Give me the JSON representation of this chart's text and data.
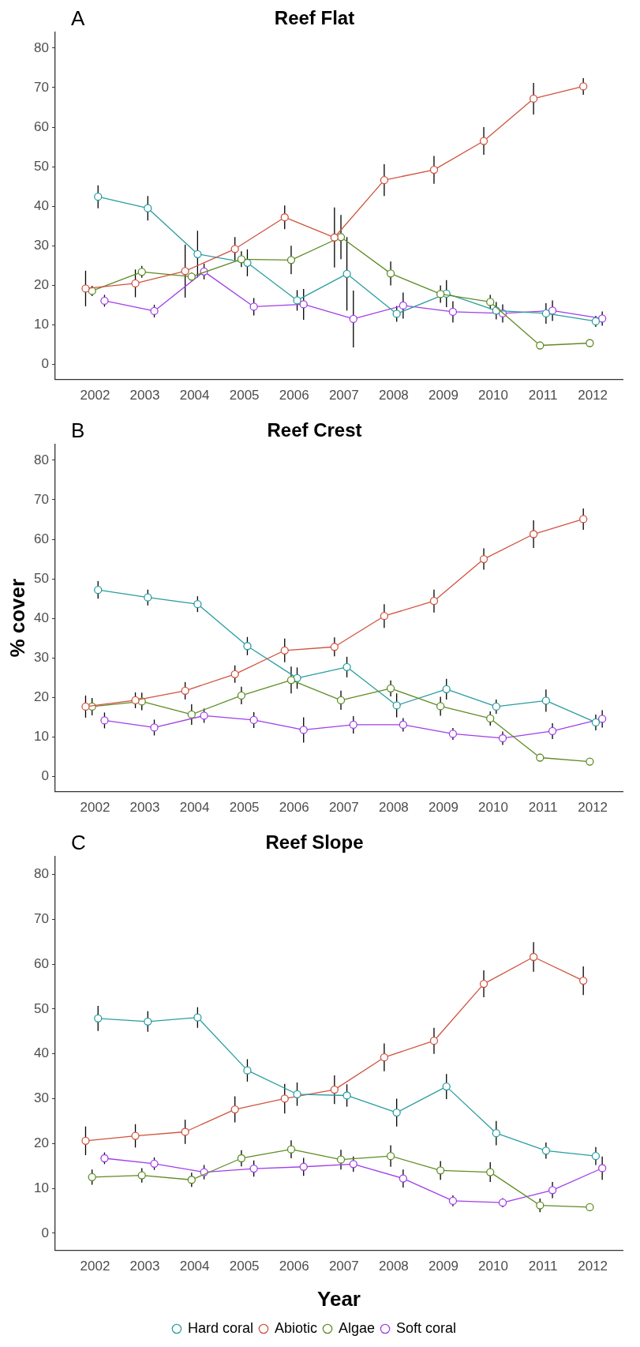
{
  "chart_data": [
    {
      "type": "line",
      "title": "Reef Flat",
      "annotations": [
        "A"
      ],
      "xlim": [
        2001.2,
        2012.6
      ],
      "xticks": [
        2002,
        2003,
        2004,
        2005,
        2006,
        2007,
        2008,
        2009,
        2010,
        2011,
        2012
      ],
      "ylim": [
        -3.8,
        84
      ],
      "yticks": [
        0,
        10,
        20,
        30,
        40,
        50,
        60,
        70,
        80
      ],
      "grid": false,
      "legend": false,
      "marker": "circle",
      "line_style": "solid",
      "series": [
        {
          "color": "#d0533f",
          "x": [
            2001.81,
            2002.81,
            2003.81,
            2004.81,
            2005.81,
            2006.81,
            2007.81,
            2008.81,
            2009.81,
            2010.81,
            2011.81
          ],
          "values": [
            19.2,
            20.5,
            23.6,
            29.2,
            37.2,
            32.1,
            46.6,
            49.2,
            56.5,
            67.2,
            70.3
          ],
          "errors": [
            4.5,
            3.5,
            6.7,
            3,
            3,
            7.6,
            4,
            3.5,
            3.5,
            4,
            2.1
          ]
        },
        {
          "color": "#5f8c24",
          "x": [
            2001.94,
            2002.94,
            2003.94,
            2004.94,
            2005.94,
            2006.94,
            2007.94,
            2008.94,
            2009.94,
            2010.94,
            2011.94
          ],
          "values": [
            18.6,
            23.4,
            22.2,
            26.6,
            26.4,
            32.2,
            23,
            17.8,
            15.8,
            4.8,
            5.4
          ],
          "errors": [
            1.3,
            1.5,
            1,
            2,
            3.6,
            5.6,
            3,
            2.2,
            1.8,
            null,
            null
          ]
        },
        {
          "color": "#2a9d9f",
          "x": [
            2002.06,
            2003.06,
            2004.06,
            2005.06,
            2006.06,
            2007.06,
            2008.06,
            2009.06,
            2010.06,
            2011.06,
            2012.06
          ],
          "values": [
            42.4,
            39.5,
            27.9,
            25.7,
            16.2,
            22.9,
            12.8,
            17.9,
            13.6,
            12.9,
            10.9
          ],
          "errors": [
            2.9,
            3.1,
            5.9,
            3.4,
            2.6,
            9.3,
            2,
            3.4,
            2.2,
            2.6,
            1.4
          ]
        },
        {
          "color": "#a13ee8",
          "x": [
            2002.19,
            2003.19,
            2004.19,
            2005.19,
            2006.19,
            2007.19,
            2008.19,
            2009.19,
            2010.19,
            2011.19,
            2012.19
          ],
          "values": [
            16.1,
            13.5,
            23.5,
            14.6,
            15.2,
            11.5,
            14.9,
            13.3,
            12.9,
            13.6,
            11.6
          ],
          "errors": [
            1.5,
            1.6,
            2,
            2.2,
            3.9,
            7.2,
            3.3,
            2.7,
            2.3,
            2.6,
            1.8
          ]
        }
      ]
    },
    {
      "type": "line",
      "title": "Reef Crest",
      "ylabel": "% cover",
      "annotations": [
        "B"
      ],
      "xlim": [
        2001.2,
        2012.6
      ],
      "xticks": [
        2002,
        2003,
        2004,
        2005,
        2006,
        2007,
        2008,
        2009,
        2010,
        2011,
        2012
      ],
      "ylim": [
        -3.8,
        84
      ],
      "yticks": [
        0,
        10,
        20,
        30,
        40,
        50,
        60,
        70,
        80
      ],
      "grid": false,
      "legend": false,
      "marker": "circle",
      "line_style": "solid",
      "series": [
        {
          "color": "#d0533f",
          "x": [
            2001.81,
            2002.81,
            2003.81,
            2004.81,
            2005.81,
            2006.81,
            2007.81,
            2008.81,
            2009.81,
            2010.81,
            2011.81
          ],
          "values": [
            17.7,
            19.3,
            21.7,
            25.9,
            31.9,
            32.8,
            40.6,
            44.4,
            55,
            61.3,
            65.1
          ],
          "errors": [
            2.8,
            2,
            2.2,
            2.2,
            3,
            2.4,
            3,
            2.9,
            2.7,
            3.5,
            2.7
          ]
        },
        {
          "color": "#5f8c24",
          "x": [
            2001.94,
            2002.94,
            2003.94,
            2004.94,
            2005.94,
            2006.94,
            2007.94,
            2008.94,
            2009.94,
            2010.94,
            2011.94
          ],
          "values": [
            17.7,
            19,
            15.7,
            20.5,
            24.4,
            19.3,
            22.3,
            17.8,
            14.7,
            4.8,
            3.8
          ],
          "errors": [
            2.2,
            2.2,
            2.6,
            2.2,
            3.4,
            2.4,
            2,
            2.4,
            1.8,
            0.3,
            0.3
          ]
        },
        {
          "color": "#2a9d9f",
          "x": [
            2002.06,
            2003.06,
            2004.06,
            2005.06,
            2006.06,
            2007.06,
            2008.06,
            2009.06,
            2010.06,
            2011.06,
            2012.06
          ],
          "values": [
            47.2,
            45.3,
            43.6,
            33,
            24.9,
            27.7,
            18,
            22.1,
            17.7,
            19.2,
            13.7
          ],
          "errors": [
            2.2,
            2,
            2,
            2.3,
            2.7,
            2.6,
            3,
            2.6,
            1.8,
            2.8,
            2
          ]
        },
        {
          "color": "#a13ee8",
          "x": [
            2002.19,
            2003.19,
            2004.19,
            2005.19,
            2006.19,
            2007.19,
            2008.19,
            2009.19,
            2010.19,
            2011.19,
            2012.19
          ],
          "values": [
            14.2,
            12.4,
            15.4,
            14.3,
            11.8,
            13.1,
            13.1,
            10.8,
            9.7,
            11.5,
            14.6
          ],
          "errors": [
            2,
            2,
            1.8,
            2,
            3.2,
            2.2,
            1.7,
            1.5,
            1.7,
            2,
            2.2
          ]
        }
      ]
    },
    {
      "type": "line",
      "title": "Reef Slope",
      "xlabel": "Year",
      "annotations": [
        "C"
      ],
      "xlim": [
        2001.2,
        2012.6
      ],
      "xticks": [
        2002,
        2003,
        2004,
        2005,
        2006,
        2007,
        2008,
        2009,
        2010,
        2011,
        2012
      ],
      "ylim": [
        -3.8,
        84
      ],
      "yticks": [
        0,
        10,
        20,
        30,
        40,
        50,
        60,
        70,
        80
      ],
      "grid": false,
      "legend": "bottom",
      "marker": "circle",
      "line_style": "solid",
      "series": [
        {
          "name": "Hard coral",
          "color": "#2a9d9f",
          "x": [
            2002.06,
            2003.06,
            2004.06,
            2005.06,
            2006.06,
            2007.06,
            2008.06,
            2009.06,
            2010.06,
            2011.06,
            2012.06
          ],
          "values": [
            47.9,
            47.2,
            48.1,
            36.3,
            31,
            30.7,
            26.9,
            32.7,
            22.3,
            18.4,
            17.2
          ],
          "errors": [
            2.8,
            2.3,
            2.3,
            2.5,
            2.6,
            2.5,
            3.1,
            2.8,
            2.7,
            1.8,
            2
          ]
        },
        {
          "name": "Abiotic",
          "color": "#d0533f",
          "x": [
            2001.81,
            2002.81,
            2003.81,
            2004.81,
            2005.81,
            2006.81,
            2007.81,
            2008.81,
            2009.81,
            2010.81,
            2011.81
          ],
          "values": [
            20.6,
            21.7,
            22.6,
            27.6,
            30,
            32,
            39.2,
            42.9,
            55.6,
            61.6,
            56.3
          ],
          "errors": [
            3.2,
            2.6,
            2.7,
            2.9,
            3.3,
            3.2,
            3.1,
            2.9,
            3,
            3.3,
            3.2
          ]
        },
        {
          "name": "Algae",
          "color": "#5f8c24",
          "x": [
            2001.94,
            2002.94,
            2003.94,
            2004.94,
            2005.94,
            2006.94,
            2007.94,
            2008.94,
            2009.94,
            2010.94,
            2011.94
          ],
          "values": [
            12.5,
            12.9,
            11.9,
            16.7,
            18.7,
            16.4,
            17.2,
            14,
            13.6,
            6.2,
            5.8
          ],
          "errors": [
            1.7,
            1.6,
            1.6,
            1.8,
            2,
            2.2,
            2.4,
            2.1,
            2.2,
            1.5,
            null
          ]
        },
        {
          "name": "Soft coral",
          "color": "#a13ee8",
          "x": [
            2002.19,
            2003.19,
            2004.19,
            2005.19,
            2006.19,
            2007.19,
            2008.19,
            2009.19,
            2010.19,
            2011.19,
            2012.19
          ],
          "values": [
            16.7,
            15.5,
            13.6,
            14.4,
            14.8,
            15.4,
            12.2,
            7.2,
            6.8,
            9.6,
            14.5
          ],
          "errors": [
            1.3,
            1.4,
            1.6,
            1.8,
            2,
            1.7,
            2,
            1.2,
            1,
            1.8,
            2.6
          ]
        }
      ]
    }
  ]
}
